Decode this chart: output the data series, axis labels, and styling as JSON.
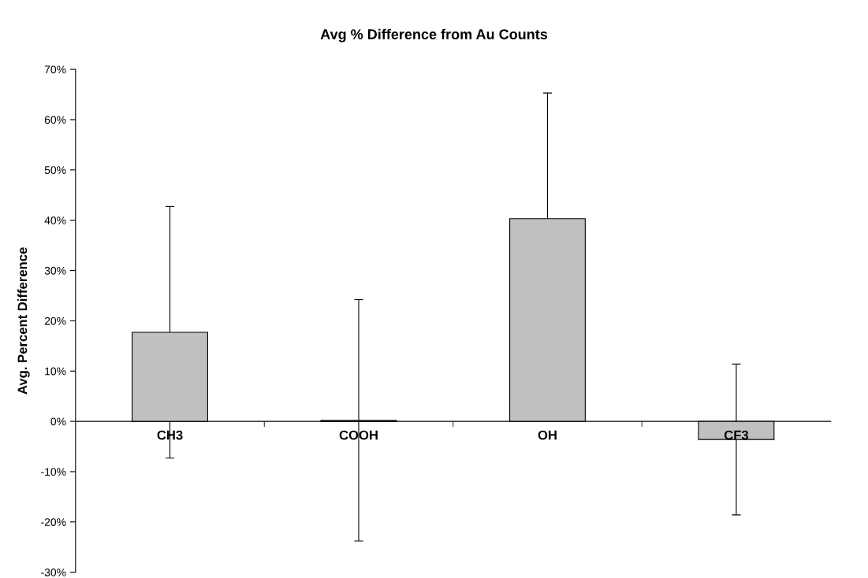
{
  "chart_data": {
    "type": "bar",
    "title": "Avg % Difference from Au Counts",
    "ylabel": "Avg. Percent Difference",
    "categories": [
      "CH3",
      "COOH",
      "OH",
      "CF3"
    ],
    "values": [
      17.7,
      0.2,
      40.3,
      -3.6
    ],
    "errors": [
      25,
      24,
      25,
      15
    ],
    "color": "#c0c0c0",
    "ylim": [
      -30,
      70
    ],
    "yticks": [
      {
        "value": -30,
        "label": "-30%"
      },
      {
        "value": -20,
        "label": "-20%"
      },
      {
        "value": -10,
        "label": "-10%"
      },
      {
        "value": 0,
        "label": "0%"
      },
      {
        "value": 10,
        "label": "10%"
      },
      {
        "value": 20,
        "label": "20%"
      },
      {
        "value": 30,
        "label": "30%"
      },
      {
        "value": 40,
        "label": "40%"
      },
      {
        "value": 50,
        "label": "50%"
      },
      {
        "value": 60,
        "label": "60%"
      },
      {
        "value": 70,
        "label": "70%"
      }
    ],
    "grid": false,
    "legend": false
  }
}
